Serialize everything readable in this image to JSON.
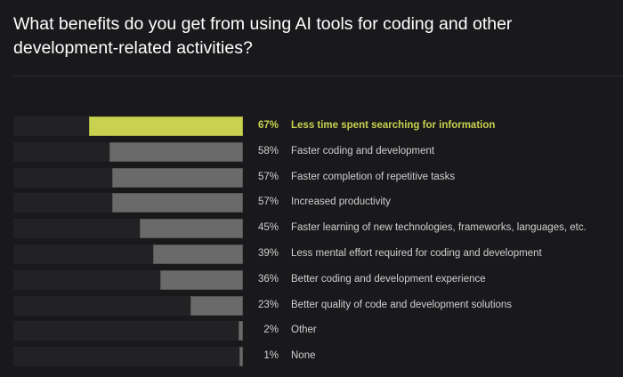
{
  "title": "What benefits do you get from using AI tools for coding and other development-related activities?",
  "chart_data": {
    "type": "bar",
    "orientation": "horizontal",
    "title": "What benefits do you get from using AI tools for coding and other development-related activities?",
    "xlim": [
      0,
      100
    ],
    "grid": false,
    "colors": {
      "highlight": "#c8d150",
      "bar": "#6a6a6a",
      "track": "#222224"
    },
    "categories": [
      "Less time spent searching for information",
      "Faster coding and development",
      "Faster completion of repetitive tasks",
      "Increased productivity",
      "Faster learning of new technologies, frameworks, languages, etc.",
      "Less mental effort required for coding and development",
      "Better coding and development experience",
      "Better quality of code and development solutions",
      "Other",
      "None"
    ],
    "values": [
      67,
      58,
      57,
      57,
      45,
      39,
      36,
      23,
      2,
      1
    ],
    "value_labels": [
      "67%",
      "58%",
      "57%",
      "57%",
      "45%",
      "39%",
      "36%",
      "23%",
      "2%",
      "1%"
    ],
    "highlighted_index": 0
  }
}
